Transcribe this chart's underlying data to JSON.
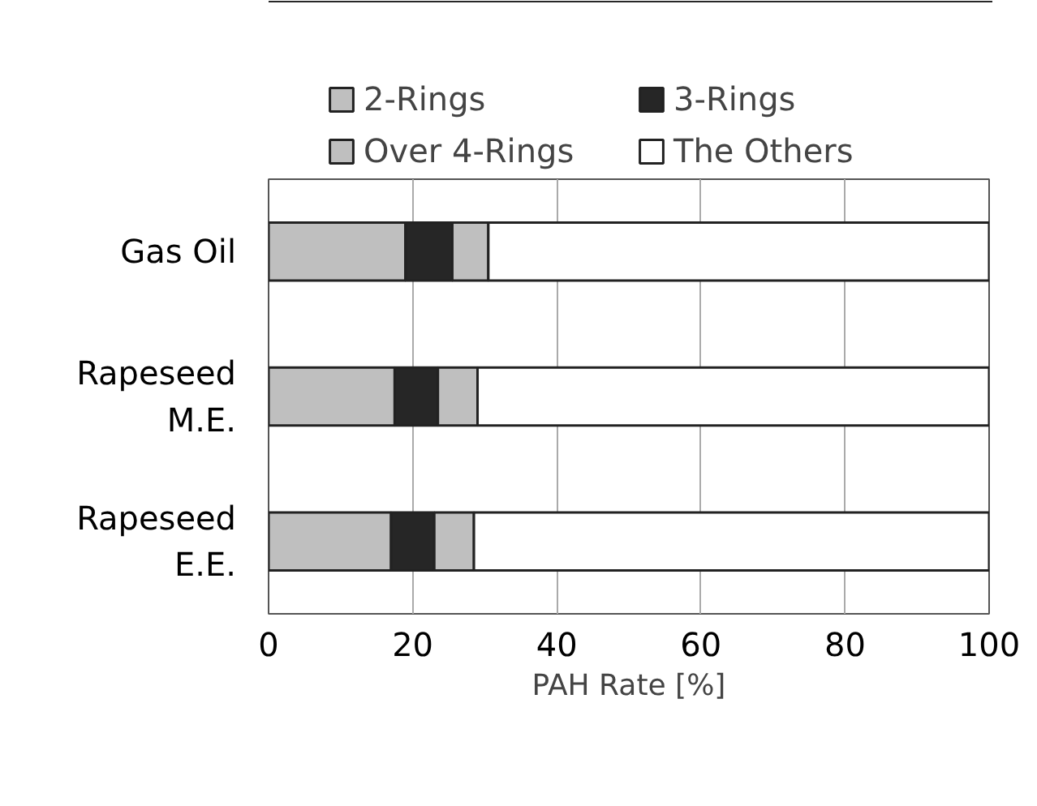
{
  "chart_data": {
    "type": "bar",
    "orientation": "horizontal",
    "stacked": true,
    "xlabel": "PAH Rate [%]",
    "categories": [
      "Gas Oil",
      "Rapeseed\nM.E.",
      "Rapeseed\nE.E."
    ],
    "series": [
      {
        "name": "2-Rings",
        "color": "#bfbfbf",
        "values": [
          19,
          17.5,
          17
        ]
      },
      {
        "name": "3-Rings",
        "color": "#262626",
        "values": [
          6.5,
          6,
          6
        ]
      },
      {
        "name": "Over 4-Rings",
        "color": "#bfbfbf",
        "values": [
          5,
          5.5,
          5.5
        ]
      },
      {
        "name": "The Others",
        "color": "#ffffff",
        "values": [
          69.5,
          71,
          71.5
        ]
      }
    ],
    "xlim": [
      0,
      100
    ],
    "xticks": [
      0,
      20,
      40,
      60,
      80,
      100
    ],
    "grid": "x",
    "legend": "top"
  }
}
